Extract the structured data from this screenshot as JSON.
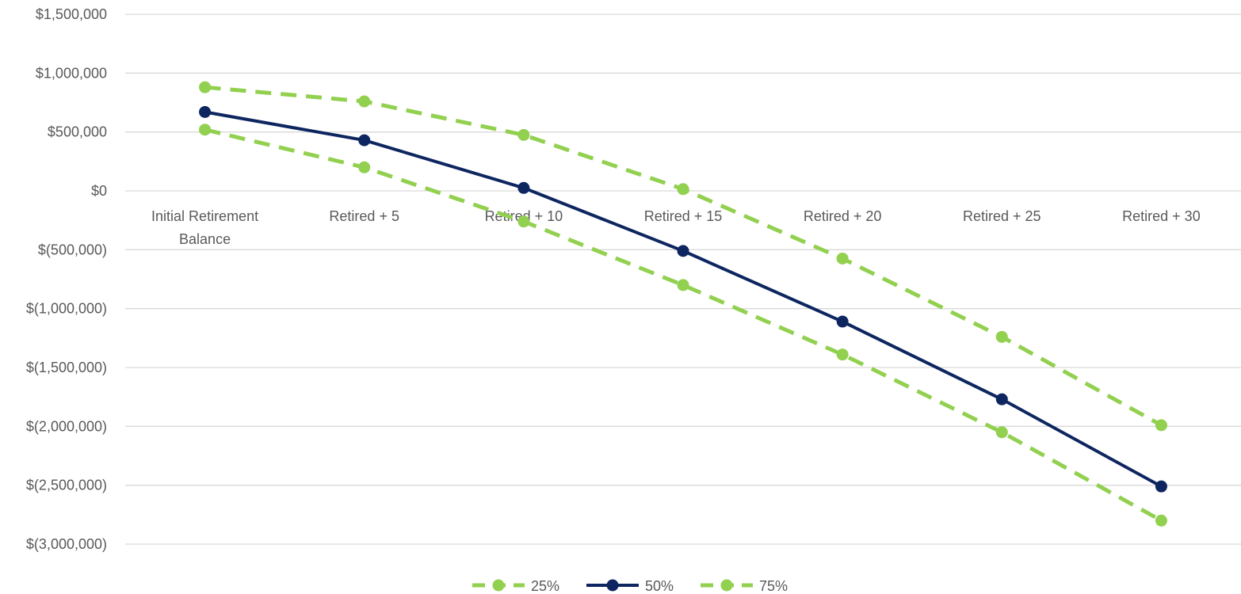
{
  "chart_data": {
    "type": "line",
    "title": "",
    "xlabel": "",
    "ylabel": "",
    "categories": [
      [
        "Initial Retirement",
        "Balance"
      ],
      [
        "Retired + 5"
      ],
      [
        "Retired + 10"
      ],
      [
        "Retired + 15"
      ],
      [
        "Retired + 20"
      ],
      [
        "Retired + 25"
      ],
      [
        "Retired + 30"
      ]
    ],
    "ylim": [
      -3000000,
      1500000
    ],
    "y_ticks": [
      1500000,
      1000000,
      500000,
      0,
      -500000,
      -1000000,
      -1500000,
      -2000000,
      -2500000,
      -3000000
    ],
    "y_tick_labels": [
      "$1,500,000",
      "$1,000,000",
      "$500,000",
      "$0",
      "$(500,000)",
      "$(1,000,000)",
      "$(1,500,000)",
      "$(2,000,000)",
      "$(2,500,000)",
      "$(3,000,000)"
    ],
    "grid": true,
    "legend_position": "bottom",
    "series": [
      {
        "name": "25%",
        "color": "#92D050",
        "dash": true,
        "values": [
          520000,
          200000,
          -260000,
          -800000,
          -1390000,
          -2050000,
          -2800000
        ]
      },
      {
        "name": "50%",
        "color": "#0E2660",
        "dash": false,
        "values": [
          670000,
          430000,
          25000,
          -510000,
          -1110000,
          -1770000,
          -2510000
        ]
      },
      {
        "name": "75%",
        "color": "#92D050",
        "dash": true,
        "values": [
          880000,
          760000,
          475000,
          15000,
          -575000,
          -1240000,
          -1990000
        ]
      }
    ]
  }
}
